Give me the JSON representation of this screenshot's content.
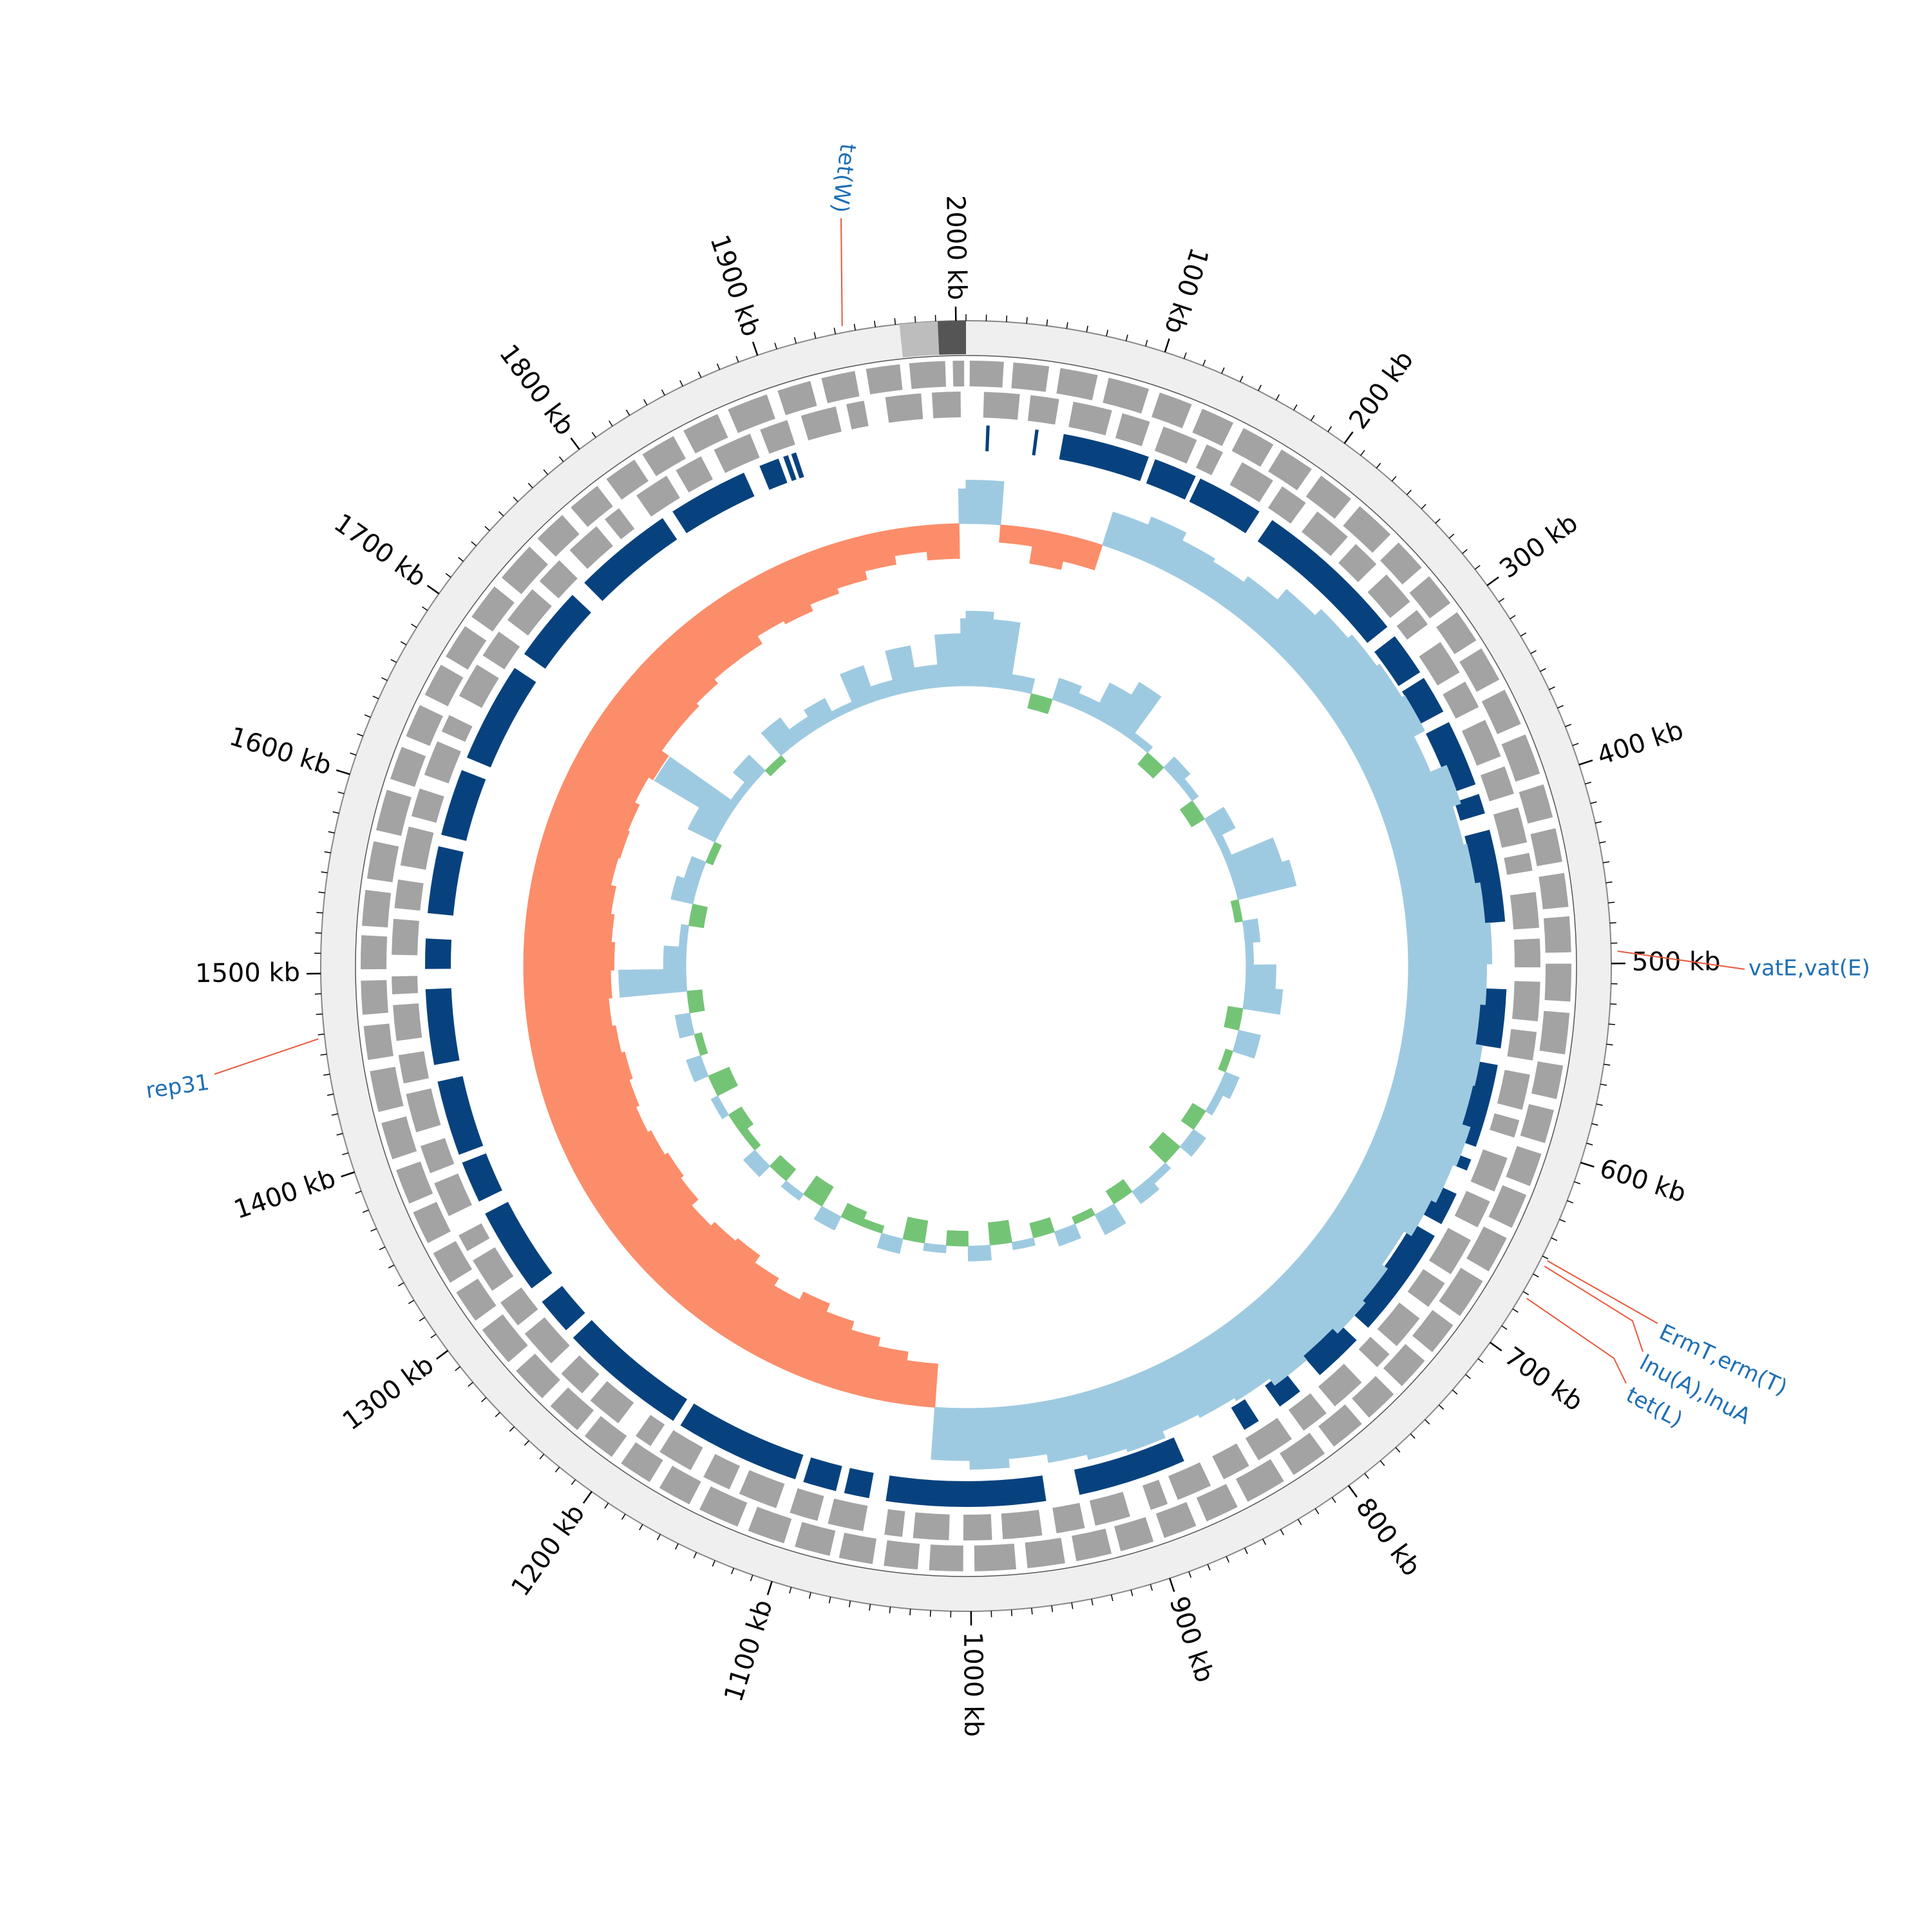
{
  "chart_data": {
    "type": "circos",
    "genome_length_kb": 2005,
    "ticks": [
      {
        "value": 100,
        "label": "100 kb"
      },
      {
        "value": 200,
        "label": "200 kb"
      },
      {
        "value": 300,
        "label": "300 kb"
      },
      {
        "value": 400,
        "label": "400 kb"
      },
      {
        "value": 500,
        "label": "500 kb"
      },
      {
        "value": 600,
        "label": "600 kb"
      },
      {
        "value": 700,
        "label": "700 kb"
      },
      {
        "value": 800,
        "label": "800 kb"
      },
      {
        "value": 900,
        "label": "900 kb"
      },
      {
        "value": 1000,
        "label": "1000 kb"
      },
      {
        "value": 1100,
        "label": "1100 kb"
      },
      {
        "value": 1200,
        "label": "1200 kb"
      },
      {
        "value": 1300,
        "label": "1300 kb"
      },
      {
        "value": 1400,
        "label": "1400 kb"
      },
      {
        "value": 1500,
        "label": "1500 kb"
      },
      {
        "value": 1600,
        "label": "1600 kb"
      },
      {
        "value": 1700,
        "label": "1700 kb"
      },
      {
        "value": 1800,
        "label": "1800 kb"
      },
      {
        "value": 1900,
        "label": "1900 kb"
      },
      {
        "value": 2000,
        "label": "2000 kb"
      }
    ],
    "minor_tick_interval_kb": 10,
    "contigs": [
      {
        "start": 1972,
        "end": 1991,
        "color": "#bdbdbd"
      },
      {
        "start": 1991,
        "end": 2005,
        "color": "#555555"
      }
    ],
    "annotations": [
      {
        "label": "tet(W)",
        "position": 1944
      },
      {
        "label": "vatE,vat(E)",
        "position": 494
      },
      {
        "label": "ErmT,erm(T)",
        "position": 651
      },
      {
        "label": "lnu(A),lnuA",
        "position": 654
      },
      {
        "label": "tet(L)",
        "position": 672
      },
      {
        "label": "rep31",
        "position": 1468
      }
    ],
    "annotation_colors": {
      "text": "#1f6fb4",
      "line": "#e8593c"
    },
    "gene_color": "#a3a3a3",
    "genes_forward": [
      [
        2,
        20
      ],
      [
        25,
        44
      ],
      [
        50,
        70
      ],
      [
        76,
        98
      ],
      [
        104,
        122
      ],
      [
        128,
        146
      ],
      [
        152,
        170
      ],
      [
        175,
        194
      ],
      [
        200,
        220
      ],
      [
        226,
        248
      ],
      [
        254,
        272
      ],
      [
        278,
        296
      ],
      [
        302,
        320
      ],
      [
        325,
        344
      ],
      [
        350,
        370
      ],
      [
        376,
        398
      ],
      [
        404,
        422
      ],
      [
        428,
        446
      ],
      [
        452,
        470
      ],
      [
        475,
        494
      ],
      [
        500,
        520
      ],
      [
        526,
        548
      ],
      [
        554,
        572
      ],
      [
        578,
        596
      ],
      [
        602,
        620
      ],
      [
        625,
        644
      ],
      [
        650,
        670
      ],
      [
        676,
        698
      ],
      [
        704,
        722
      ],
      [
        728,
        746
      ],
      [
        752,
        770
      ],
      [
        775,
        794
      ],
      [
        800,
        820
      ],
      [
        826,
        848
      ],
      [
        854,
        872
      ],
      [
        878,
        896
      ],
      [
        902,
        920
      ],
      [
        925,
        944
      ],
      [
        950,
        970
      ],
      [
        976,
        998
      ],
      [
        1004,
        1022
      ],
      [
        1028,
        1046
      ],
      [
        1052,
        1070
      ],
      [
        1075,
        1094
      ],
      [
        1100,
        1120
      ],
      [
        1126,
        1148
      ],
      [
        1154,
        1172
      ],
      [
        1178,
        1196
      ],
      [
        1202,
        1220
      ],
      [
        1225,
        1244
      ],
      [
        1250,
        1270
      ],
      [
        1276,
        1298
      ],
      [
        1304,
        1322
      ],
      [
        1328,
        1346
      ],
      [
        1352,
        1370
      ],
      [
        1375,
        1394
      ],
      [
        1400,
        1420
      ],
      [
        1426,
        1448
      ],
      [
        1454,
        1472
      ],
      [
        1478,
        1496
      ],
      [
        1502,
        1520
      ],
      [
        1525,
        1544
      ],
      [
        1550,
        1570
      ],
      [
        1576,
        1598
      ],
      [
        1604,
        1622
      ],
      [
        1628,
        1646
      ],
      [
        1652,
        1670
      ],
      [
        1675,
        1694
      ],
      [
        1700,
        1720
      ],
      [
        1726,
        1748
      ],
      [
        1754,
        1772
      ],
      [
        1778,
        1796
      ],
      [
        1802,
        1820
      ],
      [
        1825,
        1844
      ],
      [
        1850,
        1870
      ],
      [
        1876,
        1898
      ],
      [
        1904,
        1922
      ],
      [
        1928,
        1946
      ],
      [
        1952,
        1970
      ],
      [
        1975,
        1994
      ],
      [
        1998,
        2004
      ]
    ],
    "genes_reverse": [
      [
        10,
        30
      ],
      [
        36,
        52
      ],
      [
        60,
        82
      ],
      [
        88,
        104
      ],
      [
        112,
        132
      ],
      [
        138,
        148
      ],
      [
        160,
        180
      ],
      [
        186,
        202
      ],
      [
        210,
        232
      ],
      [
        238,
        254
      ],
      [
        262,
        282
      ],
      [
        288,
        298
      ],
      [
        310,
        330
      ],
      [
        336,
        352
      ],
      [
        360,
        382
      ],
      [
        388,
        404
      ],
      [
        412,
        432
      ],
      [
        438,
        448
      ],
      [
        460,
        480
      ],
      [
        486,
        502
      ],
      [
        510,
        532
      ],
      [
        538,
        554
      ],
      [
        562,
        582
      ],
      [
        588,
        598
      ],
      [
        610,
        630
      ],
      [
        636,
        652
      ],
      [
        660,
        682
      ],
      [
        688,
        704
      ],
      [
        712,
        732
      ],
      [
        738,
        748
      ],
      [
        760,
        780
      ],
      [
        786,
        802
      ],
      [
        810,
        832
      ],
      [
        838,
        854
      ],
      [
        862,
        882
      ],
      [
        888,
        898
      ],
      [
        910,
        930
      ],
      [
        936,
        952
      ],
      [
        960,
        982
      ],
      [
        988,
        1004
      ],
      [
        1012,
        1032
      ],
      [
        1038,
        1048
      ],
      [
        1060,
        1080
      ],
      [
        1086,
        1102
      ],
      [
        1110,
        1132
      ],
      [
        1138,
        1154
      ],
      [
        1162,
        1182
      ],
      [
        1188,
        1198
      ],
      [
        1210,
        1230
      ],
      [
        1236,
        1252
      ],
      [
        1260,
        1282
      ],
      [
        1288,
        1304
      ],
      [
        1312,
        1332
      ],
      [
        1338,
        1348
      ],
      [
        1360,
        1380
      ],
      [
        1386,
        1402
      ],
      [
        1410,
        1432
      ],
      [
        1438,
        1454
      ],
      [
        1462,
        1482
      ],
      [
        1488,
        1498
      ],
      [
        1510,
        1530
      ],
      [
        1536,
        1552
      ],
      [
        1560,
        1582
      ],
      [
        1588,
        1604
      ],
      [
        1612,
        1632
      ],
      [
        1638,
        1648
      ],
      [
        1660,
        1680
      ],
      [
        1686,
        1702
      ],
      [
        1710,
        1732
      ],
      [
        1738,
        1754
      ],
      [
        1762,
        1782
      ],
      [
        1788,
        1798
      ],
      [
        1810,
        1830
      ],
      [
        1836,
        1852
      ],
      [
        1860,
        1882
      ],
      [
        1888,
        1904
      ],
      [
        1912,
        1932
      ],
      [
        1938,
        1948
      ],
      [
        1960,
        1980
      ],
      [
        1986,
        2002
      ]
    ],
    "hit_color": "#08427e",
    "hits": [
      [
        12,
        14
      ],
      [
        41,
        43
      ],
      [
        58,
        110
      ],
      [
        114,
        140
      ],
      [
        143,
        183
      ],
      [
        192,
        285
      ],
      [
        292,
        318
      ],
      [
        322,
        345
      ],
      [
        352,
        392
      ],
      [
        398,
        410
      ],
      [
        420,
        475
      ],
      [
        515,
        550
      ],
      [
        560,
        610
      ],
      [
        618,
        625
      ],
      [
        640,
        660
      ],
      [
        668,
        735
      ],
      [
        745,
        775
      ],
      [
        790,
        805
      ],
      [
        820,
        830
      ],
      [
        870,
        935
      ],
      [
        955,
        1050
      ],
      [
        1060,
        1075
      ],
      [
        1080,
        1100
      ],
      [
        1105,
        1180
      ],
      [
        1185,
        1262
      ],
      [
        1268,
        1290
      ],
      [
        1300,
        1352
      ],
      [
        1360,
        1385
      ],
      [
        1390,
        1435
      ],
      [
        1445,
        1490
      ],
      [
        1502,
        1520
      ],
      [
        1535,
        1575
      ],
      [
        1582,
        1622
      ],
      [
        1630,
        1690
      ],
      [
        1700,
        1745
      ],
      [
        1755,
        1815
      ],
      [
        1822,
        1870
      ],
      [
        1880,
        1892
      ],
      [
        1895,
        1898
      ],
      [
        1900,
        1903
      ]
    ],
    "gc_skew": {
      "window_kb": 25,
      "ylim": [
        -0.1,
        0.1
      ],
      "colors": {
        "positive": "#9ecae1",
        "negative": "#fc8d6a"
      },
      "values": [
        0.025,
        -0.01,
        -0.02,
        -0.015,
        0.02,
        0.025,
        0.02,
        0.018,
        0.022,
        0.03,
        0.035,
        0.038,
        0.04,
        0.042,
        0.035,
        0.045,
        0.04,
        0.042,
        0.045,
        0.048,
        0.045,
        0.042,
        0.046,
        0.045,
        0.05,
        0.048,
        0.045,
        0.04,
        0.044,
        0.046,
        0.042,
        0.045,
        0.04,
        0.038,
        0.036,
        0.04,
        0.038,
        0.035,
        0.03,
        0.035,
        0.03,
        -0.025,
        -0.03,
        -0.035,
        -0.04,
        -0.045,
        -0.04,
        -0.045,
        -0.05,
        -0.048,
        -0.045,
        -0.05,
        -0.052,
        -0.05,
        -0.048,
        -0.05,
        -0.052,
        -0.05,
        -0.048,
        -0.05,
        -0.052,
        -0.05,
        -0.048,
        -0.045,
        -0.046,
        -0.045,
        -0.042,
        -0.045,
        -0.04,
        -0.04,
        -0.038,
        -0.035,
        -0.035,
        -0.03,
        -0.032,
        -0.028,
        -0.025,
        -0.02,
        -0.015,
        -0.02,
        0.02
      ]
    },
    "gc_content": {
      "window_kb": 25,
      "ylim": [
        -0.1,
        0.1
      ],
      "colors": {
        "positive": "#9ecae1",
        "negative": "#74c476"
      },
      "values": [
        0.05,
        0.045,
        0.01,
        -0.01,
        0.015,
        0.01,
        0.025,
        0.035,
        0.005,
        -0.01,
        0.01,
        0.005,
        -0.01,
        0.015,
        0.005,
        0.035,
        0.04,
        -0.005,
        0.01,
        0.005,
        0.02,
        0.025,
        -0.01,
        0.015,
        -0.005,
        0.01,
        0.005,
        -0.01,
        0.01,
        -0.015,
        0.005,
        0.01,
        -0.01,
        0.015,
        -0.005,
        0.01,
        -0.01,
        0.005,
        -0.015,
        0.01,
        -0.01,
        0.005,
        -0.015,
        0.01,
        -0.005,
        -0.01,
        0.01,
        -0.015,
        0.005,
        -0.01,
        0.01,
        -0.005,
        -0.01,
        0.005,
        -0.015,
        0.01,
        -0.005,
        0.01,
        -0.01,
        0.045,
        0.015,
        0.005,
        -0.01,
        0.015,
        0.01,
        -0.005,
        0.02,
        0.055,
        0.005,
        0.015,
        -0.005,
        0.02,
        0.01,
        0.015,
        0.005,
        0.025,
        0.01,
        0.03,
        0.015,
        0.035,
        0.045
      ]
    }
  }
}
